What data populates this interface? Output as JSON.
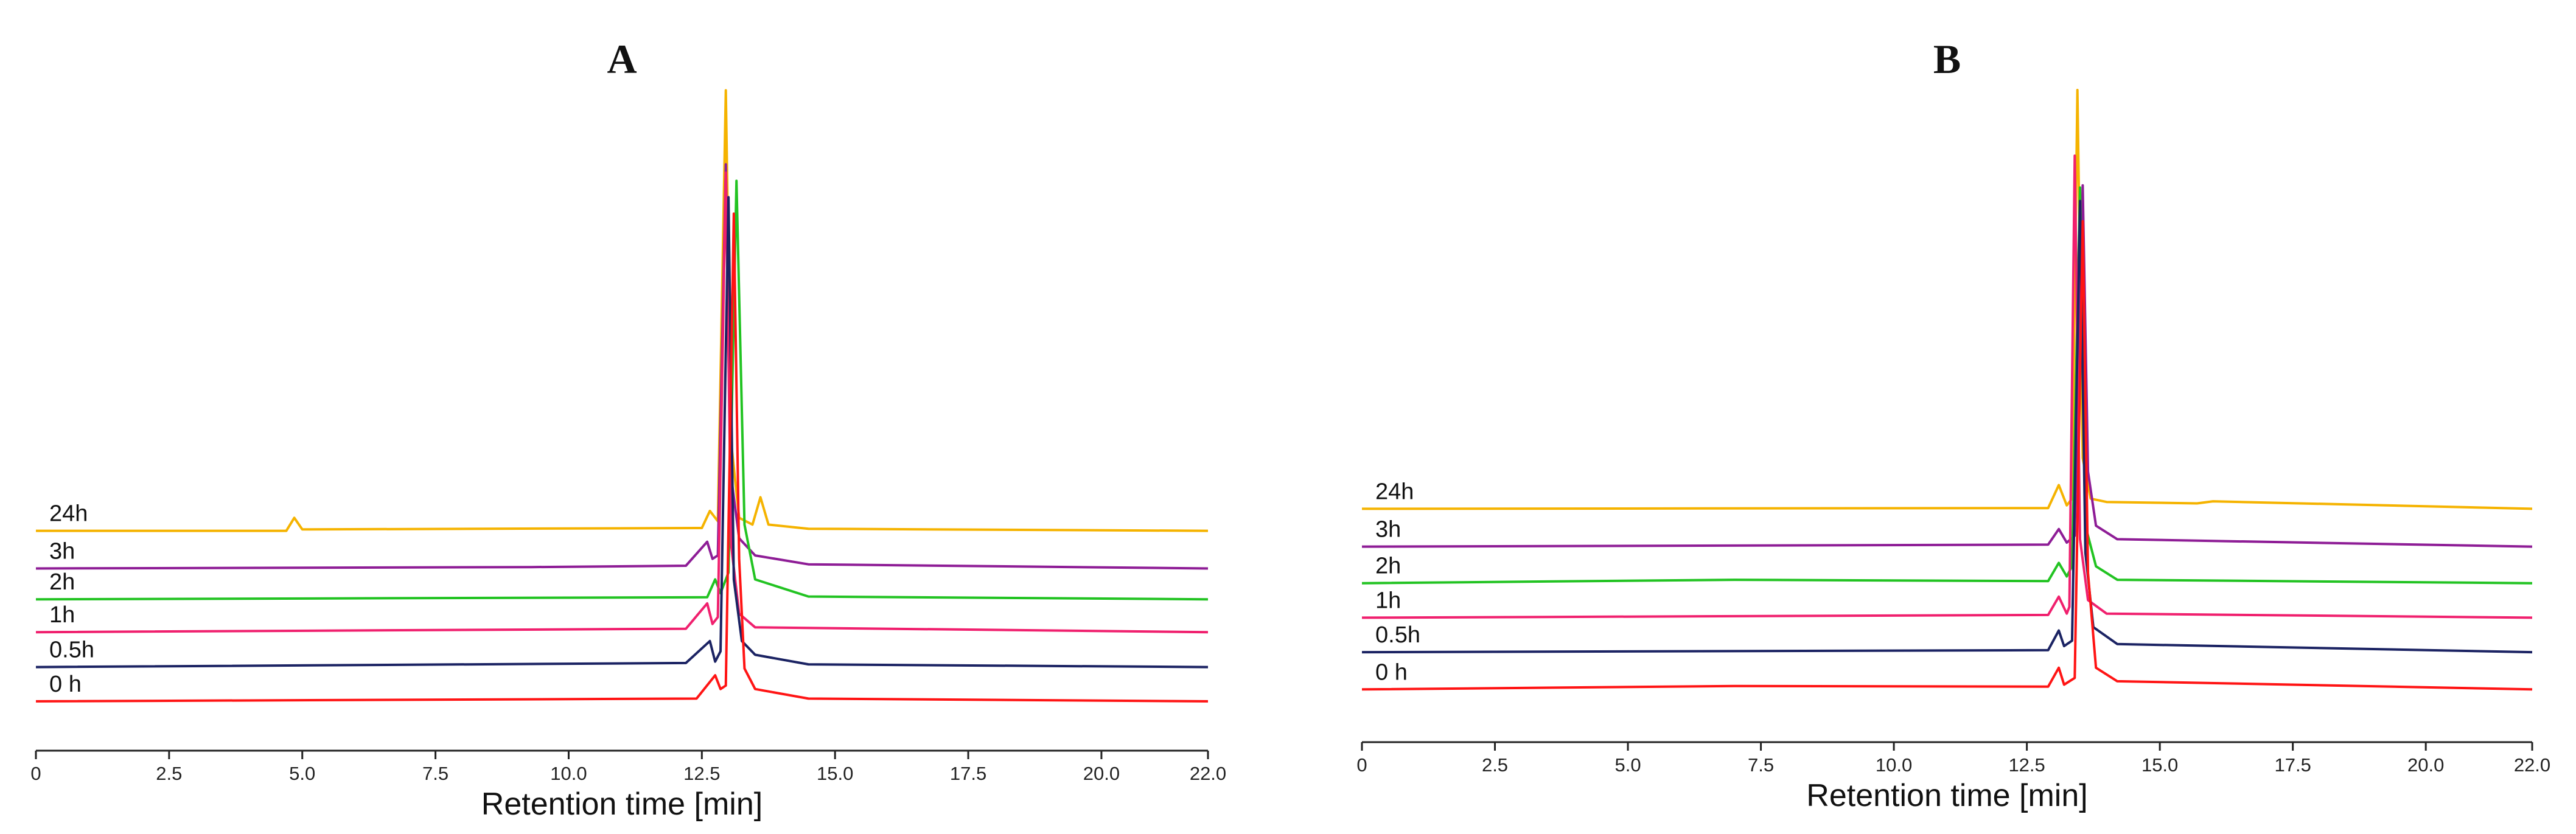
{
  "chart_data": [
    {
      "type": "line",
      "title": "A",
      "x_label": "Retention time [min]",
      "xlim": [
        0,
        22
      ],
      "ylim": [
        0,
        100
      ],
      "xticks": [
        0,
        2.5,
        {
          "value": 5,
          "label": "5.0"
        },
        7.5,
        {
          "value": 10,
          "label": "10.0"
        },
        12.5,
        {
          "value": 15,
          "label": "15.0"
        },
        17.5,
        {
          "value": 20,
          "label": "20.0"
        },
        {
          "value": 22,
          "label": "22.0"
        }
      ],
      "series": [
        {
          "name": "24h",
          "color": "#f5b300",
          "x": [
            0,
            4.7,
            4.85,
            5.0,
            12.5,
            12.65,
            12.8,
            12.95,
            13.05,
            13.2,
            13.45,
            13.6,
            13.75,
            14.5,
            22
          ],
          "values": [
            32.1,
            32.1,
            34,
            32.3,
            32.5,
            35,
            33.5,
            96.4,
            45,
            34,
            33,
            37,
            33,
            32.4,
            32.1
          ]
        },
        {
          "name": "3h",
          "color": "#8e1d96",
          "x": [
            0,
            9.3,
            12.2,
            12.6,
            12.7,
            12.8,
            12.95,
            13.05,
            13.2,
            13.5,
            14.5,
            22
          ],
          "values": [
            26.6,
            26.8,
            27,
            30.5,
            28,
            28.5,
            85.6,
            40,
            31,
            28.5,
            27.2,
            26.6
          ]
        },
        {
          "name": "2h",
          "color": "#22c322",
          "x": [
            0,
            12.6,
            12.75,
            12.85,
            13.0,
            13.15,
            13.3,
            13.5,
            14.5,
            22
          ],
          "values": [
            22.1,
            22.4,
            25,
            23,
            26,
            83.2,
            33,
            25,
            22.5,
            22.1
          ]
        },
        {
          "name": "1h",
          "color": "#f0206e",
          "x": [
            0,
            12.2,
            12.6,
            12.7,
            12.8,
            12.95,
            13.05,
            13.2,
            13.5,
            22
          ],
          "values": [
            17.3,
            17.8,
            21.5,
            18.5,
            19.5,
            84.4,
            30,
            20,
            18,
            17.3
          ]
        },
        {
          "name": "0.5h",
          "color": "#1b2363",
          "x": [
            0,
            12.2,
            12.65,
            12.75,
            12.85,
            13.0,
            13.1,
            13.25,
            13.5,
            14.5,
            22
          ],
          "values": [
            12.2,
            12.8,
            16,
            13,
            14.5,
            80.8,
            25,
            16,
            14,
            12.6,
            12.2
          ]
        },
        {
          "name": "0 h",
          "color": "#ff1414",
          "x": [
            0,
            12.4,
            12.75,
            12.85,
            12.95,
            13.1,
            13.2,
            13.3,
            13.5,
            14.5,
            22
          ],
          "values": [
            7.2,
            7.6,
            11,
            9,
            9.5,
            78.4,
            28,
            12,
            9,
            7.6,
            7.2
          ]
        }
      ]
    },
    {
      "type": "line",
      "title": "B",
      "x_label": "Retention time [min]",
      "xlim": [
        0,
        22
      ],
      "ylim": [
        0,
        100
      ],
      "xticks": [
        0,
        2.5,
        {
          "value": 5,
          "label": "5.0"
        },
        7.5,
        {
          "value": 10,
          "label": "10.0"
        },
        12.5,
        {
          "value": 15,
          "label": "15.0"
        },
        17.5,
        {
          "value": 20,
          "label": "20.0"
        },
        {
          "value": 22,
          "label": "22.0"
        }
      ],
      "series": [
        {
          "name": "24h",
          "color": "#f5b300",
          "x": [
            0,
            12.9,
            13.1,
            13.25,
            13.35,
            13.45,
            13.55,
            13.7,
            14,
            15.7,
            16,
            22
          ],
          "values": [
            34.5,
            34.6,
            38,
            35,
            36,
            96.4,
            42,
            36,
            35.5,
            35.3,
            35.6,
            34.5
          ]
        },
        {
          "name": "3h",
          "color": "#8e1d96",
          "x": [
            0,
            12.9,
            13.1,
            13.25,
            13.4,
            13.55,
            13.65,
            13.8,
            14.2,
            22
          ],
          "values": [
            28.9,
            29.2,
            31.5,
            29.5,
            30.5,
            82.3,
            40,
            32,
            30,
            28.9
          ]
        },
        {
          "name": "2h",
          "color": "#22c322",
          "x": [
            0,
            7,
            12.9,
            13.1,
            13.25,
            13.35,
            13.5,
            13.6,
            13.8,
            14.2,
            22
          ],
          "values": [
            23.5,
            24,
            23.8,
            26.5,
            24.5,
            26,
            82,
            32,
            26,
            24,
            23.5
          ]
        },
        {
          "name": "1h",
          "color": "#f0206e",
          "x": [
            0,
            12.9,
            13.1,
            13.25,
            13.3,
            13.4,
            13.5,
            13.65,
            14,
            22
          ],
          "values": [
            18.4,
            18.8,
            21.5,
            19,
            20,
            86.7,
            30,
            21,
            19,
            18.4
          ]
        },
        {
          "name": "0.5h",
          "color": "#1b2363",
          "x": [
            0,
            12.9,
            13.1,
            13.2,
            13.35,
            13.5,
            13.6,
            13.75,
            14.2,
            22
          ],
          "values": [
            13.3,
            13.6,
            16.5,
            14.2,
            15,
            80,
            28,
            17,
            14.5,
            13.3
          ]
        },
        {
          "name": "0 h",
          "color": "#ff1414",
          "x": [
            0,
            7,
            12.9,
            13.1,
            13.2,
            13.4,
            13.55,
            13.65,
            13.8,
            14.2,
            22
          ],
          "values": [
            7.8,
            8.3,
            8.2,
            11,
            8.5,
            9.5,
            77,
            25,
            11,
            9,
            7.8
          ]
        }
      ]
    }
  ]
}
